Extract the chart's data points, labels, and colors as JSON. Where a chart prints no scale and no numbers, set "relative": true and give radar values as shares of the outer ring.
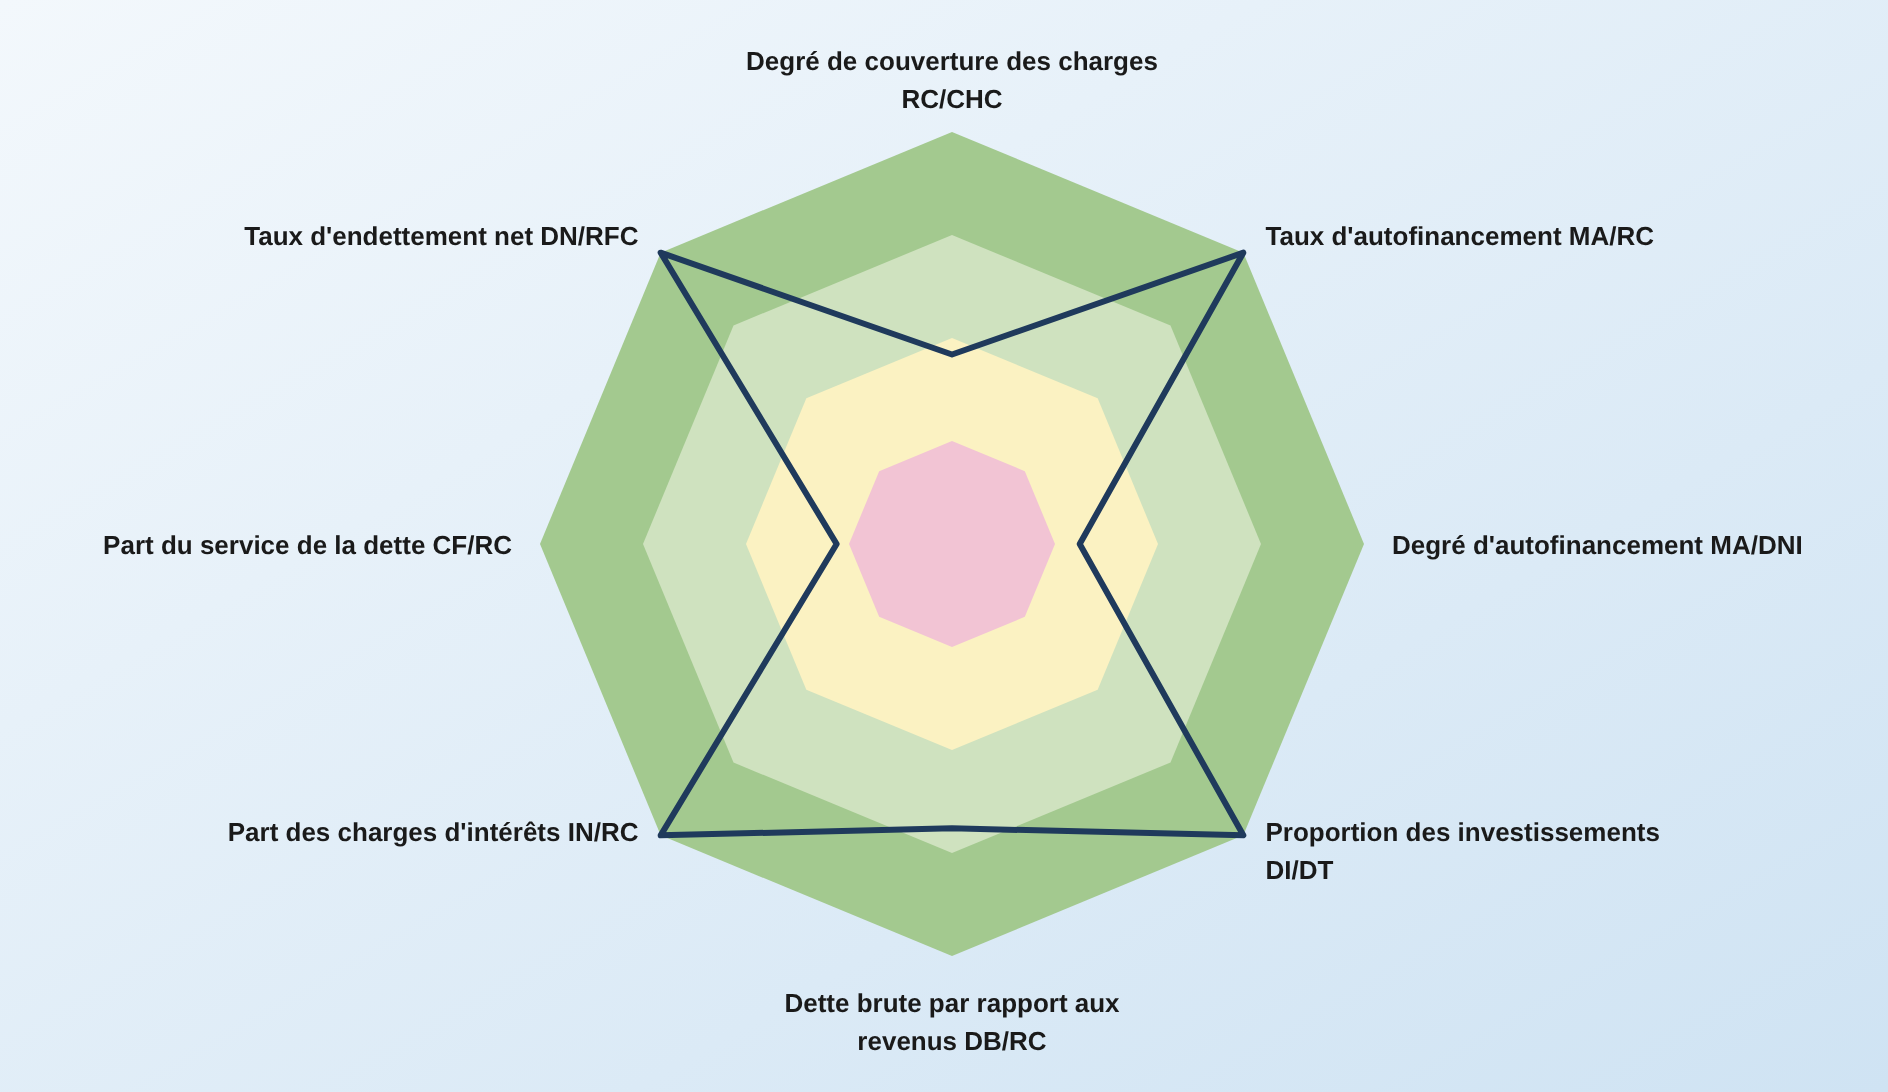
{
  "chart_data": {
    "type": "radar",
    "relative": true,
    "categories": [
      "Degré de couverture des charges RC/CHC",
      "Taux d'autofinancement MA/RC",
      "Degré d'autofinancement MA/DNI",
      "Proportion des investissements DI/DT",
      "Dette brute par rapport aux revenus DB/RC",
      "Part des charges d'intérêts IN/RC",
      "Part du service de la dette CF/RC",
      "Taux d'endettement net DN/RFC"
    ],
    "series": [
      {
        "color": "#1f3a5c",
        "values": [
          0.46,
          1,
          0.31,
          1,
          0.69,
          1,
          0.28,
          1
        ]
      }
    ],
    "marker": "none",
    "line_style": "solid"
  }
}
